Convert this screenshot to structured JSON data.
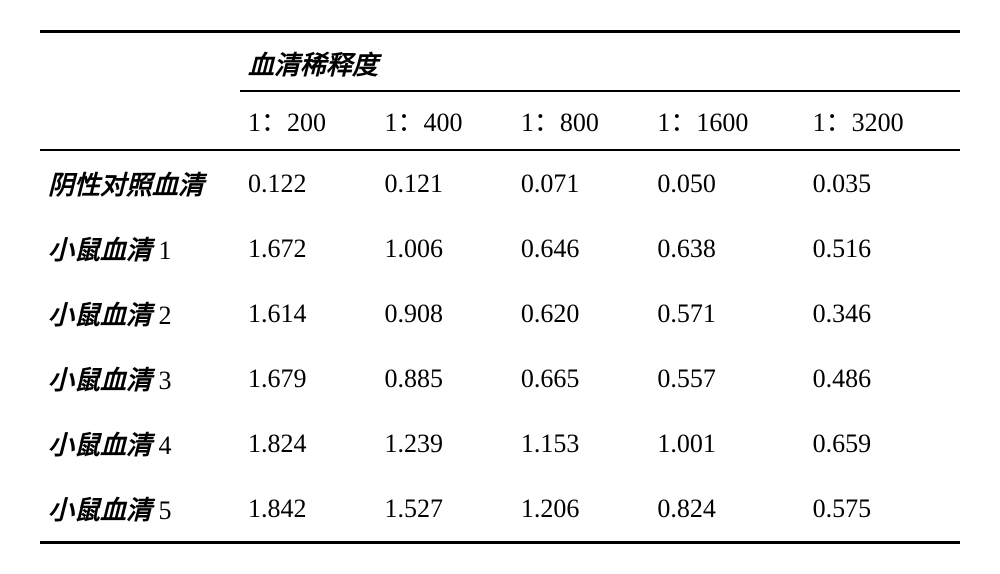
{
  "table": {
    "header_group": "血清稀释度",
    "columns": [
      "1：200",
      "1：400",
      "1：800",
      "1：1600",
      "1：3200"
    ],
    "rows": [
      {
        "label_cn": "阴性对照血清",
        "label_num": "",
        "values": [
          "0.122",
          "0.121",
          "0.071",
          "0.050",
          "0.035"
        ]
      },
      {
        "label_cn": "小鼠血清",
        "label_num": "1",
        "values": [
          "1.672",
          "1.006",
          "0.646",
          "0.638",
          "0.516"
        ]
      },
      {
        "label_cn": "小鼠血清",
        "label_num": "2",
        "values": [
          "1.614",
          "0.908",
          "0.620",
          "0.571",
          "0.346"
        ]
      },
      {
        "label_cn": "小鼠血清",
        "label_num": "3",
        "values": [
          "1.679",
          "0.885",
          "0.665",
          "0.557",
          "0.486"
        ]
      },
      {
        "label_cn": "小鼠血清",
        "label_num": "4",
        "values": [
          "1.824",
          "1.239",
          "1.153",
          "1.001",
          "0.659"
        ]
      },
      {
        "label_cn": "小鼠血清",
        "label_num": "5",
        "values": [
          "1.842",
          "1.527",
          "1.206",
          "0.824",
          "0.575"
        ]
      }
    ],
    "col_widths": [
      "200px",
      "140px",
      "140px",
      "150px",
      "160px",
      "150px"
    ],
    "font_size": 26,
    "border_color": "#000000",
    "background_color": "#ffffff",
    "text_color": "#000000"
  }
}
